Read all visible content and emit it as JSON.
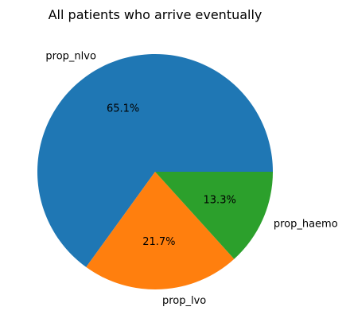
{
  "chart_data": {
    "type": "pie",
    "title": "All patients who arrive eventually",
    "slices": [
      {
        "label": "prop_nlvo",
        "value": 65.1,
        "pct_label": "65.1%",
        "color": "#1f77b4"
      },
      {
        "label": "prop_lvo",
        "value": 21.7,
        "pct_label": "21.7%",
        "color": "#ff7f0e"
      },
      {
        "label": "prop_haemo",
        "value": 13.3,
        "pct_label": "13.3%",
        "color": "#2ca02c"
      }
    ],
    "start_angle_deg": 0,
    "direction": "counterclockwise",
    "legend": "none"
  }
}
